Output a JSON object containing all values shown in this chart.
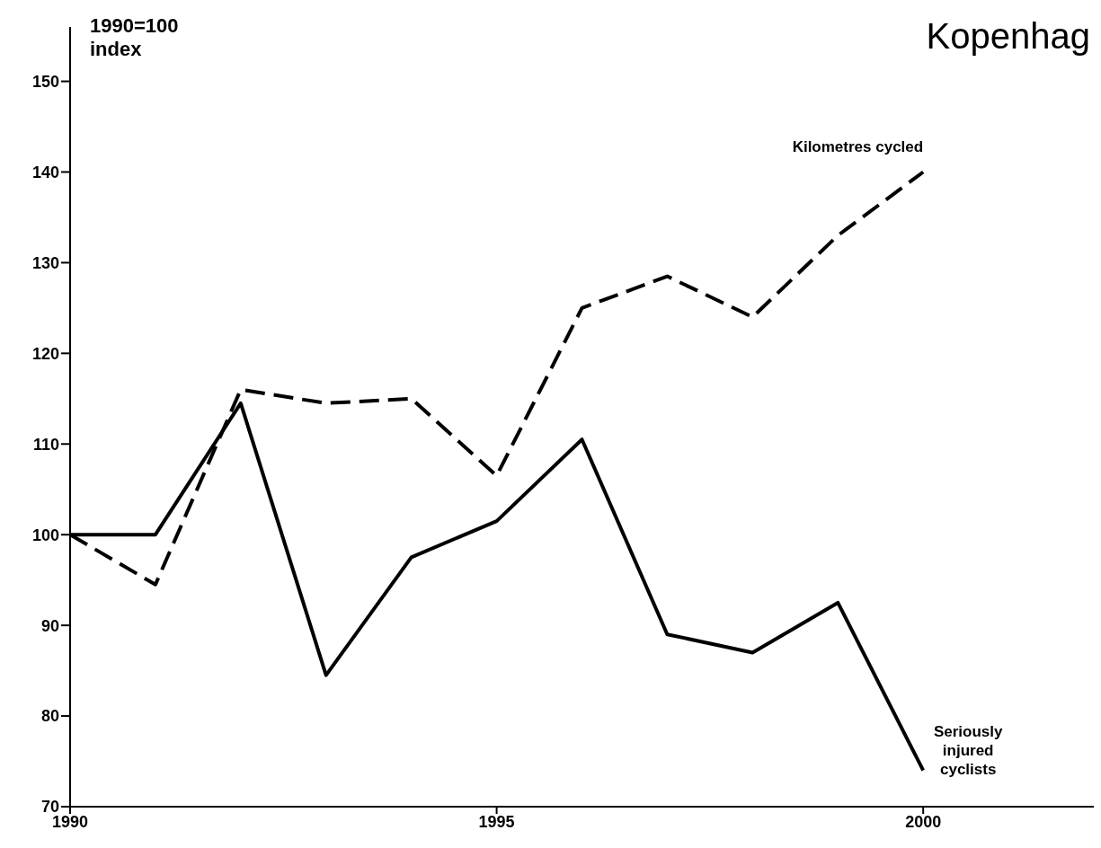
{
  "chart_data": {
    "type": "line",
    "title": "Kopenhag",
    "ylabel": "1990=100 index",
    "x": [
      1990,
      1991,
      1992,
      1993,
      1994,
      1995,
      1996,
      1997,
      1998,
      1999,
      2000
    ],
    "series": [
      {
        "name": "Kilometres cycled",
        "color": "#000000",
        "line_style": "dashed",
        "values": [
          100,
          94.5,
          116,
          114.5,
          115,
          106.5,
          125,
          128.5,
          124,
          133,
          140
        ]
      },
      {
        "name": "Seriously injured cyclists",
        "color": "#000000",
        "line_style": "solid",
        "values": [
          100,
          100,
          114.5,
          84.5,
          97.5,
          101.5,
          110.5,
          89,
          87,
          92.5,
          74
        ]
      }
    ],
    "xlim": [
      1990,
      2002
    ],
    "xticks": [
      1990,
      1995,
      2000
    ],
    "ylim": [
      70,
      156
    ],
    "yticks": [
      70,
      80,
      90,
      100,
      110,
      120,
      130,
      140,
      150
    ],
    "grid": false,
    "legend": false,
    "marker": "none"
  }
}
